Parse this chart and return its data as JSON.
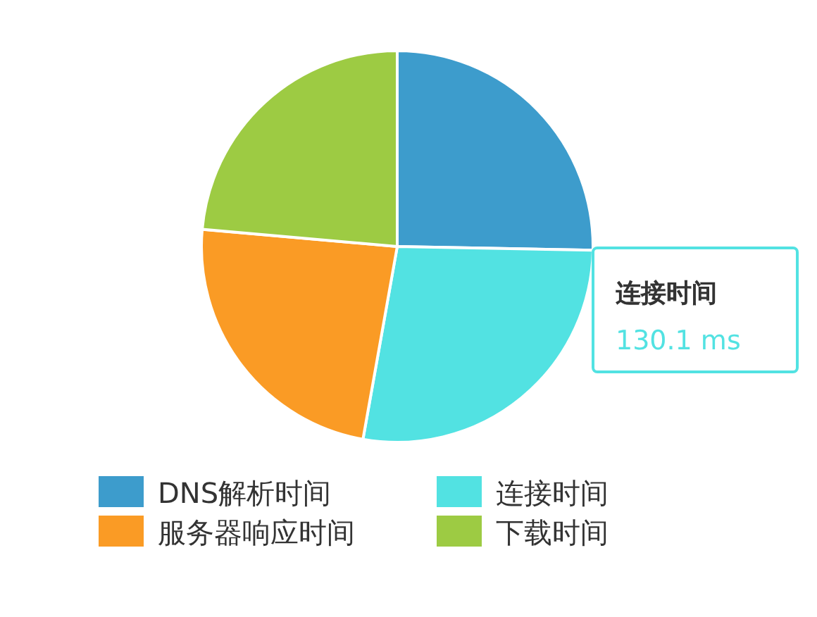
{
  "chart_data": {
    "type": "pie",
    "categories": [
      "DNS解析时间",
      "连接时间",
      "服务器响应时间",
      "下载时间"
    ],
    "values": [
      25.3,
      27.5,
      23.6,
      23.6
    ],
    "colors": [
      "#3d9ccc",
      "#52e2e2",
      "#fa9b25",
      "#9dcb43"
    ],
    "legend": "bottom",
    "annotations": [
      "连接时间",
      "130.1 ms"
    ]
  }
}
